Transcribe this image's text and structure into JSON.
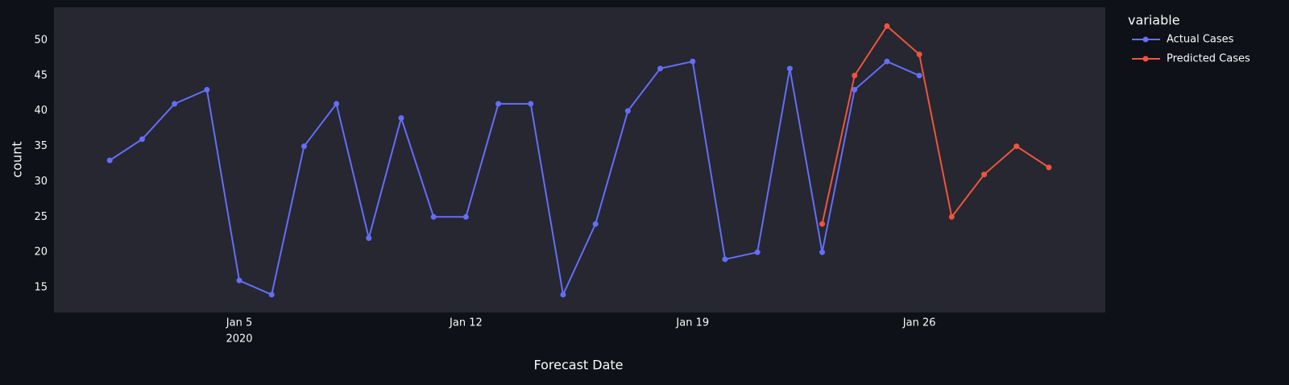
{
  "chart_data": {
    "type": "line",
    "x_label": "Forecast Date",
    "y_label": "count",
    "legend_title": "variable",
    "legend_position": "right",
    "series": [
      {
        "name": "Actual Cases",
        "color": "#636efa",
        "x": [
          "2020-01-01",
          "2020-01-02",
          "2020-01-03",
          "2020-01-04",
          "2020-01-05",
          "2020-01-06",
          "2020-01-07",
          "2020-01-08",
          "2020-01-09",
          "2020-01-10",
          "2020-01-11",
          "2020-01-12",
          "2020-01-13",
          "2020-01-14",
          "2020-01-15",
          "2020-01-16",
          "2020-01-17",
          "2020-01-18",
          "2020-01-19",
          "2020-01-20",
          "2020-01-21",
          "2020-01-22",
          "2020-01-23",
          "2020-01-24",
          "2020-01-25",
          "2020-01-26"
        ],
        "values": [
          33,
          36,
          41,
          43,
          16,
          14,
          35,
          41,
          22,
          39,
          25,
          25,
          41,
          41,
          14,
          24,
          40,
          46,
          47,
          19,
          20,
          46,
          20,
          43,
          47,
          45
        ]
      },
      {
        "name": "Predicted Cases",
        "color": "#ef553b",
        "x": [
          "2020-01-23",
          "2020-01-24",
          "2020-01-25",
          "2020-01-26",
          "2020-01-27",
          "2020-01-28",
          "2020-01-29",
          "2020-01-30"
        ],
        "values": [
          24,
          45,
          52,
          48,
          25,
          31,
          35,
          32
        ]
      }
    ],
    "xlim": [
      "2019-12-30T06:40",
      "2020-01-31T17:50"
    ],
    "xticks": [
      {
        "value": "2020-01-05",
        "label": "Jan 5",
        "sublabel": "2020"
      },
      {
        "value": "2020-01-12",
        "label": "Jan 12"
      },
      {
        "value": "2020-01-19",
        "label": "Jan 19"
      },
      {
        "value": "2020-01-26",
        "label": "Jan 26"
      }
    ],
    "ylim": [
      11.47,
      54.67
    ],
    "yticks": [
      15,
      20,
      25,
      30,
      35,
      40,
      45,
      50
    ],
    "grid": false
  }
}
